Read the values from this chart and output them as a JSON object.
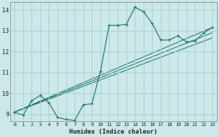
{
  "xlabel": "Humidex (Indice chaleur)",
  "bg_color": "#cce8e8",
  "grid_color": "#aacfcf",
  "line_color": "#1e7a6e",
  "xlim": [
    -0.5,
    23.5
  ],
  "ylim": [
    8.65,
    14.35
  ],
  "xticks": [
    0,
    1,
    2,
    3,
    4,
    5,
    6,
    7,
    8,
    9,
    10,
    11,
    12,
    13,
    14,
    15,
    16,
    17,
    18,
    19,
    20,
    21,
    22,
    23
  ],
  "yticks": [
    9,
    10,
    11,
    12,
    13,
    14
  ],
  "curve_x": [
    0,
    1,
    2,
    3,
    4,
    5,
    6,
    7,
    8,
    9,
    10,
    11,
    12,
    13,
    14,
    15,
    16,
    17,
    18,
    19,
    20,
    21,
    22,
    23
  ],
  "curve_y": [
    9.1,
    8.95,
    9.65,
    9.9,
    9.55,
    8.85,
    8.75,
    8.7,
    9.45,
    9.5,
    11.05,
    13.25,
    13.25,
    13.3,
    14.12,
    13.9,
    13.35,
    12.55,
    12.55,
    12.75,
    12.45,
    12.5,
    12.9,
    13.15
  ],
  "line1_x": [
    0,
    23
  ],
  "line1_y": [
    9.1,
    13.15
  ],
  "line2_x": [
    0,
    23
  ],
  "line2_y": [
    9.1,
    12.9
  ],
  "line3_x": [
    0,
    23
  ],
  "line3_y": [
    9.1,
    12.65
  ]
}
